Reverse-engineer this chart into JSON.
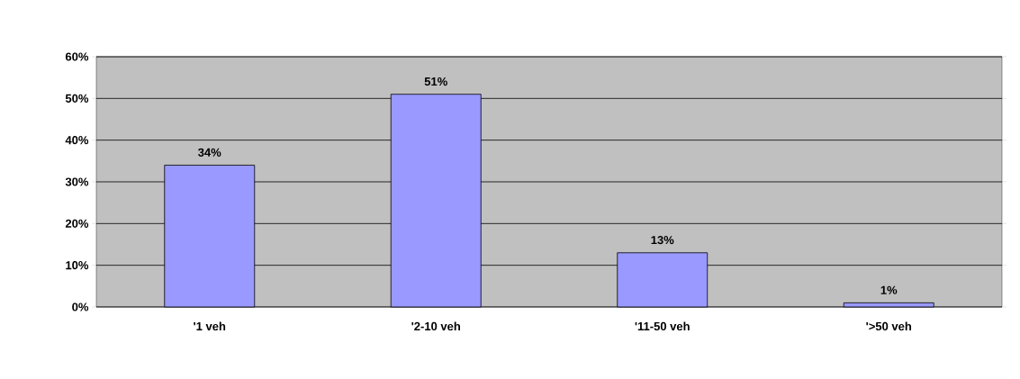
{
  "chart_data": {
    "type": "bar",
    "categories": [
      "'1 veh",
      "'2-10 veh",
      "'11-50 veh",
      "'>50 veh"
    ],
    "values": [
      34,
      51,
      13,
      1
    ],
    "value_labels": [
      "34%",
      "51%",
      "13%",
      "1%"
    ],
    "color": "#9999ff",
    "ylim": [
      0,
      60
    ],
    "yticks": [
      {
        "value": 0,
        "label": "0%"
      },
      {
        "value": 10,
        "label": "10%"
      },
      {
        "value": 20,
        "label": "20%"
      },
      {
        "value": 30,
        "label": "30%"
      },
      {
        "value": 40,
        "label": "40%"
      },
      {
        "value": 50,
        "label": "50%"
      },
      {
        "value": 60,
        "label": "60%"
      }
    ],
    "grid": "y"
  }
}
